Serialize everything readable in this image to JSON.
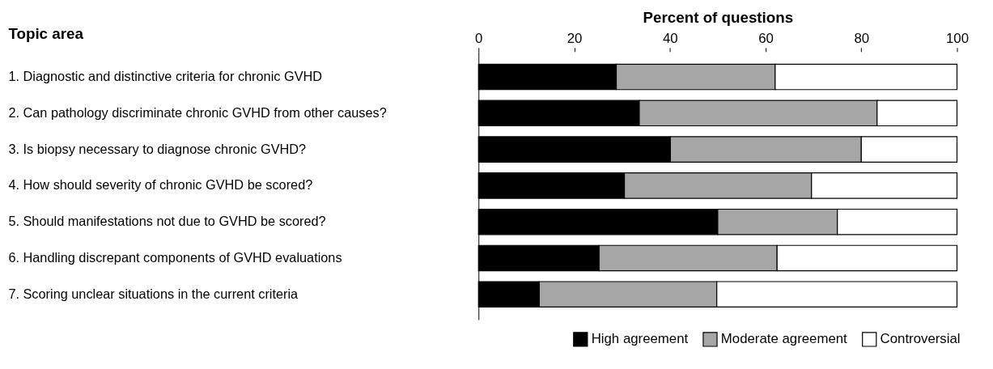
{
  "chart_data": {
    "type": "bar",
    "orientation": "horizontal",
    "stacked": true,
    "xlabel": "Percent of questions",
    "ylabel": "Topic area",
    "categories": [
      "1. Diagnostic and distinctive criteria for chronic GVHD",
      "2. Can pathology discriminate chronic GVHD from other causes?",
      "3. Is biopsy necessary to diagnose chronic GVHD?",
      "4. How should severity of chronic GVHD be scored?",
      "5. Should manifestations not due to GVHD be scored?",
      "6. Handling discrepant components of GVHD evaluations",
      "7. Scoring unclear situations in the current criteria"
    ],
    "series": [
      {
        "name": "High agreement",
        "color": "#000000",
        "values": [
          28.8,
          33.6,
          40.1,
          30.5,
          50.0,
          25.2,
          12.7
        ]
      },
      {
        "name": "Moderate agreement",
        "color": "#a6a6a6",
        "values": [
          33.2,
          49.7,
          39.9,
          39.1,
          25.0,
          37.2,
          37.1
        ]
      },
      {
        "name": "Controversial",
        "color": "#ffffff",
        "values": [
          38.0,
          16.7,
          20.0,
          30.4,
          25.0,
          37.6,
          50.2
        ]
      }
    ],
    "xlim": [
      0,
      100
    ],
    "xticks": [
      0,
      20,
      40,
      60,
      80,
      100
    ],
    "grid": false,
    "legend": "bottom right"
  }
}
